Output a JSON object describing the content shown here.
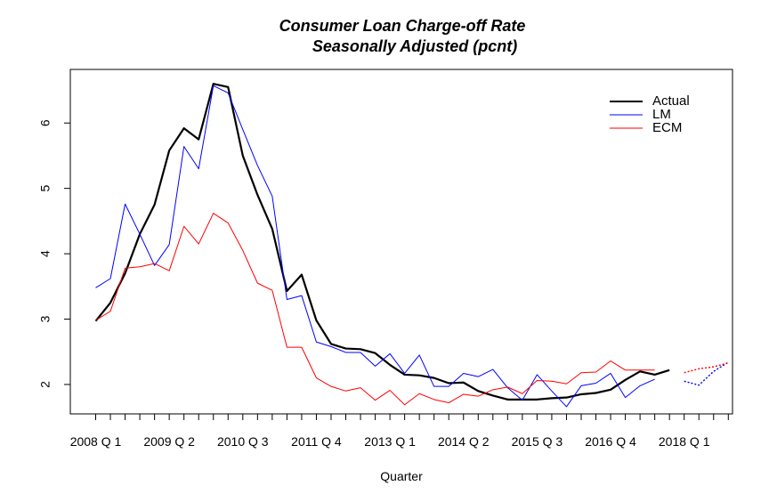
{
  "chart_data": {
    "type": "line",
    "title": "Consumer Loan Charge-off Rate",
    "subtitle": "Seasonally Adjusted (pcnt)",
    "xlabel": "Quarter",
    "ylabel": "",
    "x_tick_labels": [
      "2008 Q 1",
      "2009 Q 2",
      "2010 Q 3",
      "2011 Q 4",
      "2013 Q 1",
      "2014 Q 2",
      "2015 Q 3",
      "2016 Q 4",
      "2018 Q 1"
    ],
    "y_ticks": [
      2,
      3,
      4,
      5,
      6
    ],
    "ylim": [
      1.55,
      6.82
    ],
    "x_start": "2008 Q 1",
    "x_end": "2018 Q 4",
    "legend_position": "top-right",
    "legend_entries": [
      "Actual",
      "LM",
      "ECM"
    ],
    "series": [
      {
        "name": "Actual",
        "color": "#000000",
        "style": "solid-thick",
        "values": [
          2.97,
          3.25,
          3.7,
          4.3,
          4.75,
          5.58,
          5.92,
          5.75,
          6.6,
          6.55,
          5.5,
          4.9,
          4.38,
          3.43,
          3.68,
          2.98,
          2.62,
          2.55,
          2.54,
          2.48,
          2.3,
          2.15,
          2.14,
          2.1,
          2.02,
          2.03,
          1.9,
          1.83,
          1.77,
          1.77,
          1.77,
          1.79,
          1.8,
          1.85,
          1.87,
          1.92,
          2.07,
          2.2,
          2.15,
          2.22
        ]
      },
      {
        "name": "LM",
        "color": "#0000ff",
        "style": "solid",
        "values": [
          3.48,
          3.62,
          4.76,
          4.3,
          3.82,
          4.14,
          5.64,
          5.3,
          6.57,
          6.46,
          5.9,
          5.35,
          4.88,
          3.3,
          3.36,
          2.65,
          2.58,
          2.49,
          2.49,
          2.28,
          2.47,
          2.17,
          2.45,
          1.97,
          1.97,
          2.17,
          2.12,
          2.23,
          1.95,
          1.76,
          2.15,
          1.9,
          1.66,
          1.98,
          2.02,
          2.17,
          1.8,
          1.98,
          2.08,
          null,
          null,
          null,
          null,
          null
        ],
        "forecast": [
          null,
          null,
          null,
          null,
          null,
          null,
          null,
          null,
          null,
          null,
          null,
          null,
          null,
          null,
          null,
          null,
          null,
          null,
          null,
          null,
          null,
          null,
          null,
          null,
          null,
          null,
          null,
          null,
          null,
          null,
          null,
          null,
          null,
          null,
          null,
          null,
          null,
          null,
          null,
          null,
          2.05,
          1.99,
          2.2,
          2.34
        ]
      },
      {
        "name": "ECM",
        "color": "#ff0000",
        "style": "solid",
        "values": [
          2.98,
          3.12,
          3.78,
          3.8,
          3.85,
          3.74,
          4.42,
          4.15,
          4.62,
          4.47,
          4.05,
          3.55,
          3.44,
          2.57,
          2.57,
          2.1,
          1.97,
          1.9,
          1.95,
          1.76,
          1.91,
          1.69,
          1.86,
          1.77,
          1.72,
          1.85,
          1.82,
          1.92,
          1.96,
          1.86,
          2.06,
          2.05,
          2.01,
          2.18,
          2.19,
          2.36,
          2.22,
          2.22,
          2.22,
          null,
          null,
          null,
          null,
          null
        ],
        "forecast": [
          null,
          null,
          null,
          null,
          null,
          null,
          null,
          null,
          null,
          null,
          null,
          null,
          null,
          null,
          null,
          null,
          null,
          null,
          null,
          null,
          null,
          null,
          null,
          null,
          null,
          null,
          null,
          null,
          null,
          null,
          null,
          null,
          null,
          null,
          null,
          null,
          null,
          null,
          null,
          null,
          2.18,
          2.24,
          2.27,
          2.33
        ]
      }
    ]
  }
}
